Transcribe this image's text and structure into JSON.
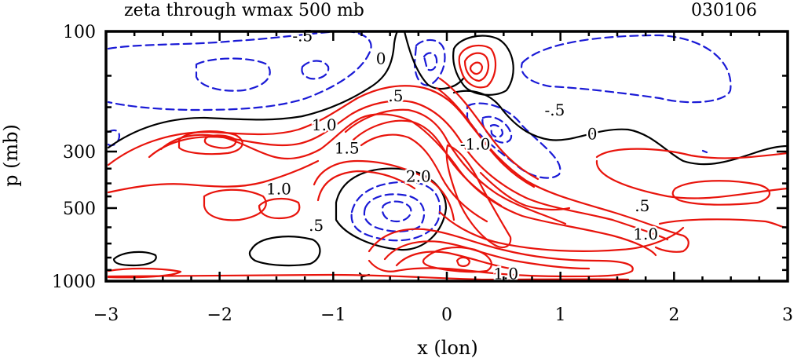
{
  "chart_data": {
    "type": "contour",
    "title": "zeta through wmax 500 mb",
    "date_label": "030106",
    "xlabel": "x (lon)",
    "ylabel": "p (mb)",
    "xlim": [
      -3,
      3
    ],
    "x_ticks": [
      -3,
      -2,
      -1,
      0,
      1,
      2,
      3
    ],
    "x_tick_labels": [
      "−3",
      "−2",
      "−1",
      "0",
      "1",
      "2",
      "3"
    ],
    "y_ticks": [
      100,
      300,
      500,
      1000
    ],
    "y_tick_labels": [
      "100",
      "300",
      "500",
      "1000"
    ],
    "colors": {
      "positive": "#e8140c",
      "zero": "#000000",
      "negative": "#1a1ad6"
    },
    "contour_labels": [
      {
        "text": "-.5",
        "x": -1.27,
        "p": 104
      },
      {
        "text": "0",
        "x": -0.58,
        "p": 128
      },
      {
        "text": ".5",
        "x": -0.45,
        "p": 180
      },
      {
        "text": "1.0",
        "x": -1.08,
        "p": 235
      },
      {
        "text": "1.5",
        "x": -0.88,
        "p": 290
      },
      {
        "text": "2.0",
        "x": -0.25,
        "p": 375
      },
      {
        "text": "1.0",
        "x": -1.48,
        "p": 420
      },
      {
        "text": ".5",
        "x": -1.15,
        "p": 590
      },
      {
        "text": "-.5",
        "x": 0.95,
        "p": 205
      },
      {
        "text": "0",
        "x": 1.28,
        "p": 255
      },
      {
        "text": ".5",
        "x": 1.72,
        "p": 490
      },
      {
        "text": "1.0",
        "x": 1.75,
        "p": 640
      },
      {
        "text": "-1.0",
        "x": 0.25,
        "p": 280
      },
      {
        "text": "1.0",
        "x": 0.52,
        "p": 930
      }
    ]
  }
}
